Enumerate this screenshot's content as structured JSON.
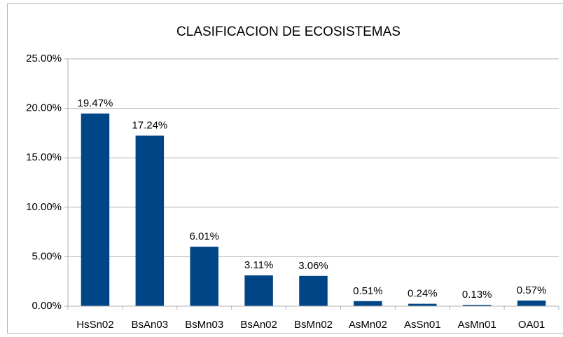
{
  "chart_data": {
    "type": "bar",
    "title": "CLASIFICACION DE ECOSISTEMAS",
    "categories": [
      "HsSn02",
      "BsAn03",
      "BsMn03",
      "BsAn02",
      "BsMn02",
      "AsMn02",
      "AsSn01",
      "AsMn01",
      "OA01"
    ],
    "values": [
      19.47,
      17.24,
      6.01,
      3.11,
      3.06,
      0.51,
      0.24,
      0.13,
      0.57
    ],
    "value_labels": [
      "19.47%",
      "17.24%",
      "6.01%",
      "3.11%",
      "3.06%",
      "0.51%",
      "0.24%",
      "0.13%",
      "0.57%"
    ],
    "color": "#004586",
    "ylim": [
      0,
      25
    ],
    "yticks": [
      {
        "value": 0,
        "label": "0.00%"
      },
      {
        "value": 5,
        "label": "5.00%"
      },
      {
        "value": 10,
        "label": "10.00%"
      },
      {
        "value": 15,
        "label": "15.00%"
      },
      {
        "value": 20,
        "label": "20.00%"
      },
      {
        "value": 25,
        "label": "25.00%"
      }
    ],
    "grid": true
  }
}
